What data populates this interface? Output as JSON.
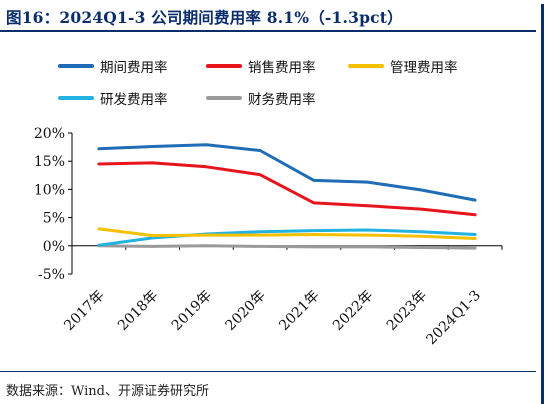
{
  "title": "图16：2024Q1-3 公司期间费用率 8.1%（-1.3pct）",
  "source": "数据来源：Wind、开源证券研究所",
  "chart_data": {
    "type": "line",
    "categories": [
      "2017年",
      "2018年",
      "2019年",
      "2020年",
      "2021年",
      "2022年",
      "2023年",
      "2024Q1-3"
    ],
    "y_tick_labels": [
      "20%",
      "15%",
      "10%",
      "5%",
      "0%",
      "-5%"
    ],
    "y_ticks": [
      20,
      15,
      10,
      5,
      0,
      -5
    ],
    "ylim": [
      -5,
      20
    ],
    "grid": false,
    "legend_position": "top",
    "series": [
      {
        "name": "期间费用率",
        "color": "#1f6db6",
        "values": [
          17.2,
          17.6,
          17.9,
          16.9,
          11.6,
          11.3,
          9.9,
          8.1
        ]
      },
      {
        "name": "销售费用率",
        "color": "#e8141c",
        "values": [
          14.5,
          14.7,
          14.0,
          12.6,
          7.6,
          7.1,
          6.5,
          5.5
        ]
      },
      {
        "name": "管理费用率",
        "color": "#f5c000",
        "values": [
          3.0,
          1.8,
          1.9,
          1.9,
          2.0,
          1.9,
          1.7,
          1.3
        ]
      },
      {
        "name": "研发费用率",
        "color": "#22b2e2",
        "values": [
          0.1,
          1.4,
          2.1,
          2.5,
          2.7,
          2.8,
          2.5,
          2.0
        ]
      },
      {
        "name": "财务费用率",
        "color": "#9a9a9a",
        "values": [
          0.0,
          -0.1,
          0.0,
          -0.1,
          -0.2,
          -0.2,
          -0.3,
          -0.4
        ]
      }
    ]
  }
}
